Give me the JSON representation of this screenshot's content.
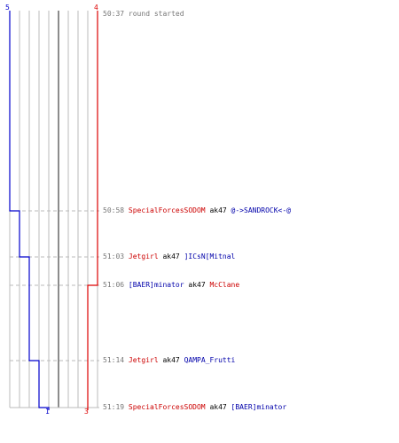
{
  "colors": {
    "blue_team": "#0000cc",
    "red_team": "#dd0000",
    "grid": "#bbbbbb",
    "center": "#666666",
    "dash": "#bbbbbb",
    "time": "#777777"
  },
  "teams": {
    "blue": {
      "start_count": "5",
      "end_count": "1"
    },
    "red": {
      "start_count": "4",
      "end_count": "3"
    }
  },
  "chart_data": {
    "type": "line",
    "x_unit": "players alive",
    "x_range": [
      0,
      10
    ],
    "y_unit": "time (mm:ss)",
    "series": [
      {
        "team": "blue",
        "steps": [
          [
            0,
            5
          ],
          [
            1,
            4
          ],
          [
            2,
            3
          ],
          [
            3,
            2
          ],
          [
            4,
            1
          ]
        ]
      },
      {
        "team": "red",
        "steps": [
          [
            0,
            4
          ],
          [
            2,
            3
          ]
        ]
      }
    ]
  },
  "events": [
    {
      "time": "50:37",
      "type": "info",
      "text": "round started"
    },
    {
      "time": "50:58",
      "type": "kill",
      "killer": "SpecialForcesSODOM",
      "killer_team": "red",
      "weapon": "ak47",
      "victim": "@->SANDROCK<-@",
      "victim_team": "blue"
    },
    {
      "time": "51:03",
      "type": "kill",
      "killer": "Jetgirl",
      "killer_team": "red",
      "weapon": "ak47",
      "victim": "]ICsN[Mitnal",
      "victim_team": "blue"
    },
    {
      "time": "51:06",
      "type": "kill",
      "killer": "[BAER]minator",
      "killer_team": "blue",
      "weapon": "ak47",
      "victim": "McClane",
      "victim_team": "red"
    },
    {
      "time": "51:14",
      "type": "kill",
      "killer": "Jetgirl",
      "killer_team": "red",
      "weapon": "ak47",
      "victim": "QAMPA_Frutti",
      "victim_team": "blue"
    },
    {
      "time": "51:19",
      "type": "kill",
      "killer": "SpecialForcesSODOM",
      "killer_team": "red",
      "weapon": "ak47",
      "victim": "[BAER]minator",
      "victim_team": "blue"
    }
  ]
}
